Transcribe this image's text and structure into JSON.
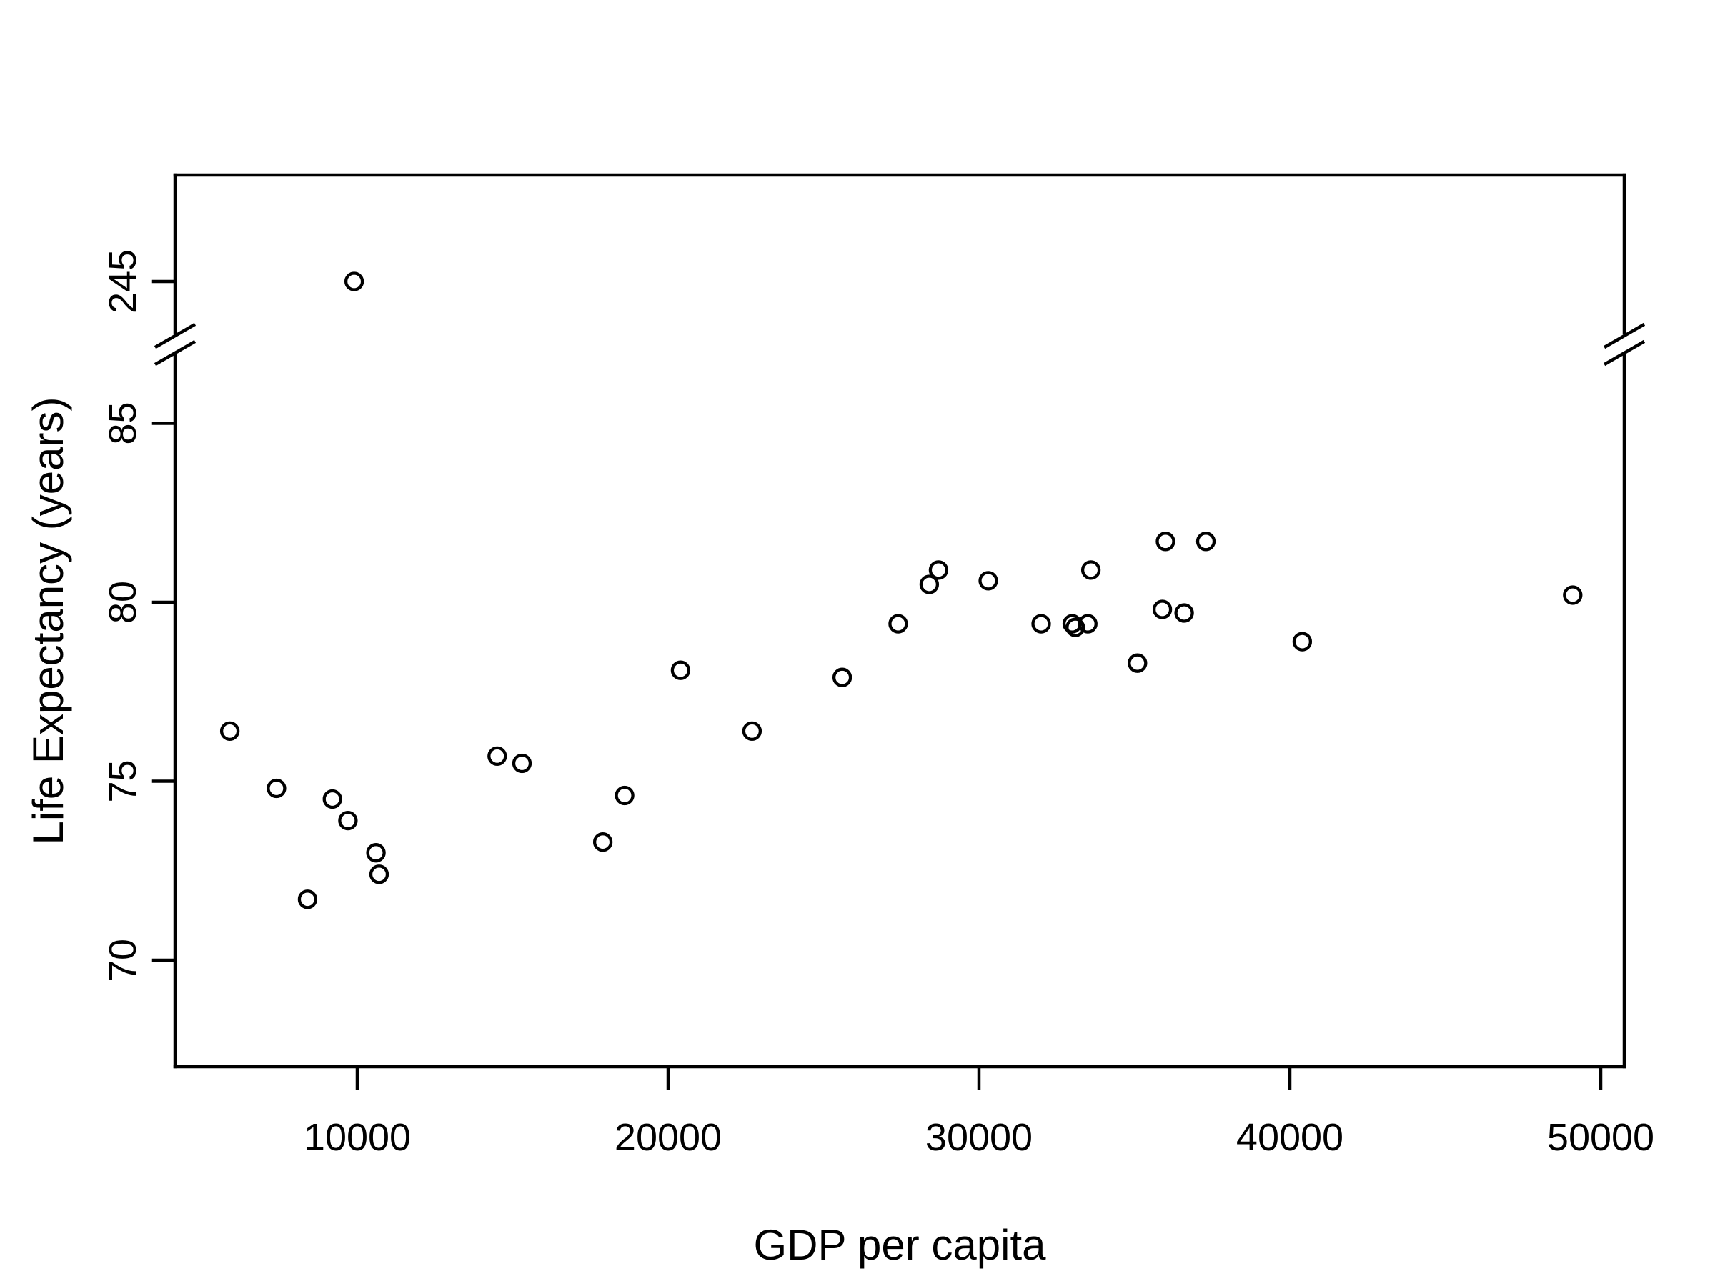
{
  "chart_data": {
    "type": "scatter",
    "title": "",
    "xlabel": "GDP per capita",
    "ylabel": "Life Expectancy (years)",
    "marker": "open-circle",
    "grid": false,
    "legend": "none",
    "x_ticks": [
      10000,
      20000,
      30000,
      40000,
      50000
    ],
    "y_ticks_lower": [
      70,
      75,
      80,
      85
    ],
    "y_tick_upper": 245,
    "xlim": [
      4100,
      50800
    ],
    "ylim_lower": [
      67,
      87.5
    ],
    "axis_break": {
      "enabled": true,
      "lower_max": 87.5,
      "upper_tick_value": 245
    },
    "colors": {
      "stroke": "#000000",
      "background": "#ffffff"
    },
    "points": [
      {
        "gdp": 5900,
        "life_expectancy": 76.4
      },
      {
        "gdp": 7400,
        "life_expectancy": 74.8
      },
      {
        "gdp": 8400,
        "life_expectancy": 71.7
      },
      {
        "gdp": 9200,
        "life_expectancy": 74.5
      },
      {
        "gdp": 9700,
        "life_expectancy": 73.9
      },
      {
        "gdp": 9900,
        "life_expectancy": 245
      },
      {
        "gdp": 10600,
        "life_expectancy": 73.0
      },
      {
        "gdp": 10700,
        "life_expectancy": 72.4
      },
      {
        "gdp": 14500,
        "life_expectancy": 75.7
      },
      {
        "gdp": 15300,
        "life_expectancy": 75.5
      },
      {
        "gdp": 17900,
        "life_expectancy": 73.3
      },
      {
        "gdp": 18600,
        "life_expectancy": 74.6
      },
      {
        "gdp": 20400,
        "life_expectancy": 78.1
      },
      {
        "gdp": 22700,
        "life_expectancy": 76.4
      },
      {
        "gdp": 25600,
        "life_expectancy": 77.9
      },
      {
        "gdp": 27400,
        "life_expectancy": 79.4
      },
      {
        "gdp": 28400,
        "life_expectancy": 80.5
      },
      {
        "gdp": 28700,
        "life_expectancy": 80.9
      },
      {
        "gdp": 30300,
        "life_expectancy": 80.6
      },
      {
        "gdp": 32000,
        "life_expectancy": 79.4
      },
      {
        "gdp": 33000,
        "life_expectancy": 79.4
      },
      {
        "gdp": 33100,
        "life_expectancy": 79.3
      },
      {
        "gdp": 33500,
        "life_expectancy": 79.4
      },
      {
        "gdp": 33600,
        "life_expectancy": 80.9
      },
      {
        "gdp": 35100,
        "life_expectancy": 78.3
      },
      {
        "gdp": 35900,
        "life_expectancy": 79.8
      },
      {
        "gdp": 36000,
        "life_expectancy": 81.7
      },
      {
        "gdp": 36600,
        "life_expectancy": 79.7
      },
      {
        "gdp": 37300,
        "life_expectancy": 81.7
      },
      {
        "gdp": 40400,
        "life_expectancy": 78.9
      },
      {
        "gdp": 49100,
        "life_expectancy": 80.2
      }
    ]
  }
}
